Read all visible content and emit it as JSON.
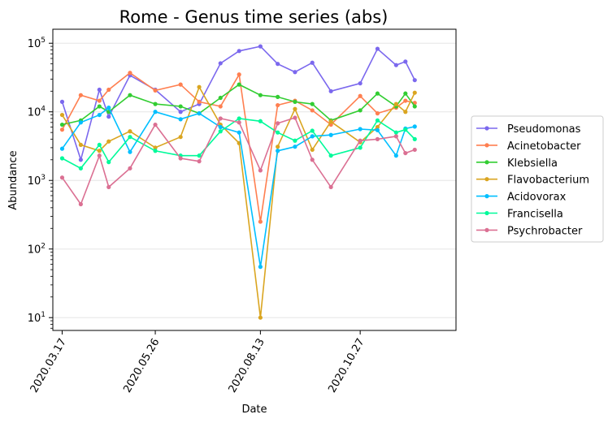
{
  "chart_data": {
    "type": "line",
    "title": "Rome - Genus time series (abs)",
    "xlabel": "Date",
    "ylabel": "Abundance",
    "yscale": "log",
    "ylim": [
      6.5,
      160000
    ],
    "xlim": [
      "2020-03-10",
      "2021-01-07"
    ],
    "grid": "horizontal",
    "legend_position": "outside-right",
    "x_ticks": [
      {
        "date": "2020-03-17",
        "label": "2020.03.17"
      },
      {
        "date": "2020-05-26",
        "label": "2020.05.26"
      },
      {
        "date": "2020-08-13",
        "label": "2020.08.13"
      },
      {
        "date": "2020-10-27",
        "label": "2020.10.27"
      }
    ],
    "y_ticks": [
      {
        "value": 10,
        "base": "10",
        "exp": "1"
      },
      {
        "value": 100,
        "base": "10",
        "exp": "2"
      },
      {
        "value": 1000,
        "base": "10",
        "exp": "3"
      },
      {
        "value": 10000,
        "base": "10",
        "exp": "4"
      },
      {
        "value": 100000,
        "base": "10",
        "exp": "5"
      }
    ],
    "dates": [
      "2020-03-17",
      "2020-03-31",
      "2020-04-14",
      "2020-04-21",
      "2020-05-07",
      "2020-05-26",
      "2020-06-14",
      "2020-06-28",
      "2020-07-14",
      "2020-07-28",
      "2020-08-13",
      "2020-08-26",
      "2020-09-08",
      "2020-09-21",
      "2020-10-05",
      "2020-10-27",
      "2020-11-09",
      "2020-11-23",
      "2020-11-30",
      "2020-12-07"
    ],
    "series": [
      {
        "name": "Pseudomonas",
        "color": "#7b68ee",
        "points": [
          [
            "2020-03-17",
            14000
          ],
          [
            "2020-03-31",
            2000
          ],
          [
            "2020-04-14",
            21000
          ],
          [
            "2020-04-21",
            8500
          ],
          [
            "2020-05-07",
            34000
          ],
          [
            "2020-05-26",
            21000
          ],
          [
            "2020-06-14",
            10000
          ],
          [
            "2020-06-28",
            13000
          ],
          [
            "2020-07-14",
            51000
          ],
          [
            "2020-07-28",
            77000
          ],
          [
            "2020-08-13",
            90000
          ],
          [
            "2020-08-26",
            50000
          ],
          [
            "2020-09-08",
            38000
          ],
          [
            "2020-09-21",
            52000
          ],
          [
            "2020-10-05",
            20000
          ],
          [
            "2020-10-27",
            26000
          ],
          [
            "2020-11-09",
            83000
          ],
          [
            "2020-11-23",
            48000
          ],
          [
            "2020-11-30",
            54000
          ],
          [
            "2020-12-07",
            29000
          ]
        ]
      },
      {
        "name": "Acinetobacter",
        "color": "#ff7f50",
        "points": [
          [
            "2020-03-17",
            5500
          ],
          [
            "2020-03-31",
            17500
          ],
          [
            "2020-04-14",
            14500
          ],
          [
            "2020-04-21",
            21000
          ],
          [
            "2020-05-07",
            37000
          ],
          [
            "2020-05-26",
            20500
          ],
          [
            "2020-06-14",
            25000
          ],
          [
            "2020-06-28",
            14000
          ],
          [
            "2020-07-14",
            12000
          ],
          [
            "2020-07-28",
            35000
          ],
          [
            "2020-08-13",
            250
          ],
          [
            "2020-08-26",
            12500
          ],
          [
            "2020-09-08",
            14500
          ],
          [
            "2020-09-21",
            10500
          ],
          [
            "2020-10-05",
            6500
          ],
          [
            "2020-10-27",
            17000
          ],
          [
            "2020-11-09",
            9500
          ],
          [
            "2020-11-23",
            11500
          ],
          [
            "2020-11-30",
            14500
          ],
          [
            "2020-12-07",
            13500
          ]
        ]
      },
      {
        "name": "Klebsiella",
        "color": "#32cd32",
        "points": [
          [
            "2020-03-17",
            6500
          ],
          [
            "2020-03-31",
            7500
          ],
          [
            "2020-04-14",
            12000
          ],
          [
            "2020-04-21",
            10000
          ],
          [
            "2020-05-07",
            17500
          ],
          [
            "2020-05-26",
            13000
          ],
          [
            "2020-06-14",
            12000
          ],
          [
            "2020-06-28",
            9500
          ],
          [
            "2020-07-14",
            16000
          ],
          [
            "2020-07-28",
            25000
          ],
          [
            "2020-08-13",
            17500
          ],
          [
            "2020-08-26",
            16500
          ],
          [
            "2020-09-08",
            14000
          ],
          [
            "2020-09-21",
            13000
          ],
          [
            "2020-10-05",
            7500
          ],
          [
            "2020-10-27",
            10500
          ],
          [
            "2020-11-09",
            18500
          ],
          [
            "2020-11-23",
            12000
          ],
          [
            "2020-11-30",
            18500
          ],
          [
            "2020-12-07",
            12000
          ]
        ]
      },
      {
        "name": "Flavobacterium",
        "color": "#daa520",
        "points": [
          [
            "2020-03-17",
            9000
          ],
          [
            "2020-03-31",
            3300
          ],
          [
            "2020-04-14",
            2700
          ],
          [
            "2020-04-21",
            3700
          ],
          [
            "2020-05-07",
            5200
          ],
          [
            "2020-05-26",
            3000
          ],
          [
            "2020-06-14",
            4300
          ],
          [
            "2020-06-28",
            23000
          ],
          [
            "2020-07-14",
            6500
          ],
          [
            "2020-07-28",
            3500
          ],
          [
            "2020-08-13",
            10
          ],
          [
            "2020-08-26",
            3100
          ],
          [
            "2020-09-08",
            11000
          ],
          [
            "2020-09-21",
            2800
          ],
          [
            "2020-10-05",
            7200
          ],
          [
            "2020-10-27",
            3600
          ],
          [
            "2020-11-09",
            6000
          ],
          [
            "2020-11-23",
            13000
          ],
          [
            "2020-11-30",
            10000
          ],
          [
            "2020-12-07",
            19000
          ]
        ]
      },
      {
        "name": "Acidovorax",
        "color": "#00bfff",
        "points": [
          [
            "2020-03-17",
            2900
          ],
          [
            "2020-03-31",
            7000
          ],
          [
            "2020-04-14",
            9000
          ],
          [
            "2020-04-21",
            11500
          ],
          [
            "2020-05-07",
            2600
          ],
          [
            "2020-05-26",
            10000
          ],
          [
            "2020-06-14",
            7800
          ],
          [
            "2020-06-28",
            9500
          ],
          [
            "2020-07-14",
            6000
          ],
          [
            "2020-07-28",
            5000
          ],
          [
            "2020-08-13",
            55
          ],
          [
            "2020-08-26",
            2700
          ],
          [
            "2020-09-08",
            3100
          ],
          [
            "2020-09-21",
            4400
          ],
          [
            "2020-10-05",
            4600
          ],
          [
            "2020-10-27",
            5600
          ],
          [
            "2020-11-09",
            5400
          ],
          [
            "2020-11-23",
            2300
          ],
          [
            "2020-11-30",
            5700
          ],
          [
            "2020-12-07",
            6100
          ]
        ]
      },
      {
        "name": "Francisella",
        "color": "#00fa9a",
        "points": [
          [
            "2020-03-17",
            2100
          ],
          [
            "2020-03-31",
            1500
          ],
          [
            "2020-04-14",
            3300
          ],
          [
            "2020-04-21",
            1850
          ],
          [
            "2020-05-07",
            4300
          ],
          [
            "2020-05-26",
            2700
          ],
          [
            "2020-06-14",
            2300
          ],
          [
            "2020-06-28",
            2300
          ],
          [
            "2020-07-14",
            5200
          ],
          [
            "2020-07-28",
            8000
          ],
          [
            "2020-08-13",
            7300
          ],
          [
            "2020-08-26",
            5000
          ],
          [
            "2020-09-08",
            3800
          ],
          [
            "2020-09-21",
            5300
          ],
          [
            "2020-10-05",
            2300
          ],
          [
            "2020-10-27",
            3000
          ],
          [
            "2020-11-09",
            7500
          ],
          [
            "2020-11-23",
            5000
          ],
          [
            "2020-11-30",
            5500
          ],
          [
            "2020-12-07",
            4000
          ]
        ]
      },
      {
        "name": "Psychrobacter",
        "color": "#db7093",
        "points": [
          [
            "2020-03-17",
            1100
          ],
          [
            "2020-03-31",
            450
          ],
          [
            "2020-04-14",
            2300
          ],
          [
            "2020-04-21",
            800
          ],
          [
            "2020-05-07",
            1500
          ],
          [
            "2020-05-26",
            6500
          ],
          [
            "2020-06-14",
            2100
          ],
          [
            "2020-06-28",
            1900
          ],
          [
            "2020-07-14",
            8000
          ],
          [
            "2020-07-28",
            7000
          ],
          [
            "2020-08-13",
            1400
          ],
          [
            "2020-08-26",
            6800
          ],
          [
            "2020-09-08",
            8200
          ],
          [
            "2020-09-21",
            2000
          ],
          [
            "2020-10-05",
            800
          ],
          [
            "2020-10-27",
            3800
          ],
          [
            "2020-11-09",
            4000
          ],
          [
            "2020-11-23",
            4400
          ],
          [
            "2020-11-30",
            2500
          ],
          [
            "2020-12-07",
            2800
          ]
        ]
      }
    ]
  }
}
